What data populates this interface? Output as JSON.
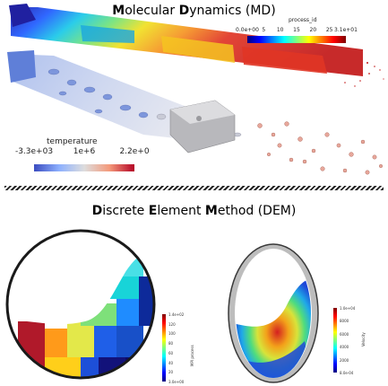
{
  "md": {
    "title_parts": [
      {
        "text": "M",
        "bold": true
      },
      {
        "text": "olecular ",
        "bold": false
      },
      {
        "text": "D",
        "bold": true
      },
      {
        "text": "ynamics (MD)",
        "bold": false
      }
    ],
    "process_colorbar": {
      "label": "process_id",
      "ticks": [
        "0.0e+00",
        "5",
        "10",
        "15",
        "20",
        "25",
        "3.1e+01"
      ]
    },
    "temperature_colorbar": {
      "label": "temperature",
      "ticks": [
        "-3.3e+03",
        "1e+6",
        "2.2e+0"
      ]
    }
  },
  "dem": {
    "title_parts": [
      {
        "text": "D",
        "bold": true
      },
      {
        "text": "iscrete ",
        "bold": false
      },
      {
        "text": "E",
        "bold": true
      },
      {
        "text": "lement ",
        "bold": false
      },
      {
        "text": "M",
        "bold": true
      },
      {
        "text": "ethod (DEM)",
        "bold": false
      }
    ],
    "mpi_colorbar": {
      "label": "MPI process",
      "ticks": [
        "1.4e+02",
        "120",
        "100",
        "80",
        "60",
        "40",
        "20",
        "3.0e+00"
      ]
    },
    "velocity_colorbar": {
      "label": "Velocity",
      "ticks": [
        "1.0e+04",
        "8000",
        "6000",
        "4000",
        "2000",
        "8.0e-04"
      ]
    }
  },
  "colors": {
    "jet": [
      "#00007f",
      "#0000ff",
      "#007fff",
      "#00ffff",
      "#7fff7f",
      "#ffff00",
      "#ff7f00",
      "#ff0000",
      "#7f0000"
    ],
    "temperature": [
      "#3b4cc0",
      "#8db0fe",
      "#dddddd",
      "#f49a7b",
      "#b40426"
    ]
  }
}
